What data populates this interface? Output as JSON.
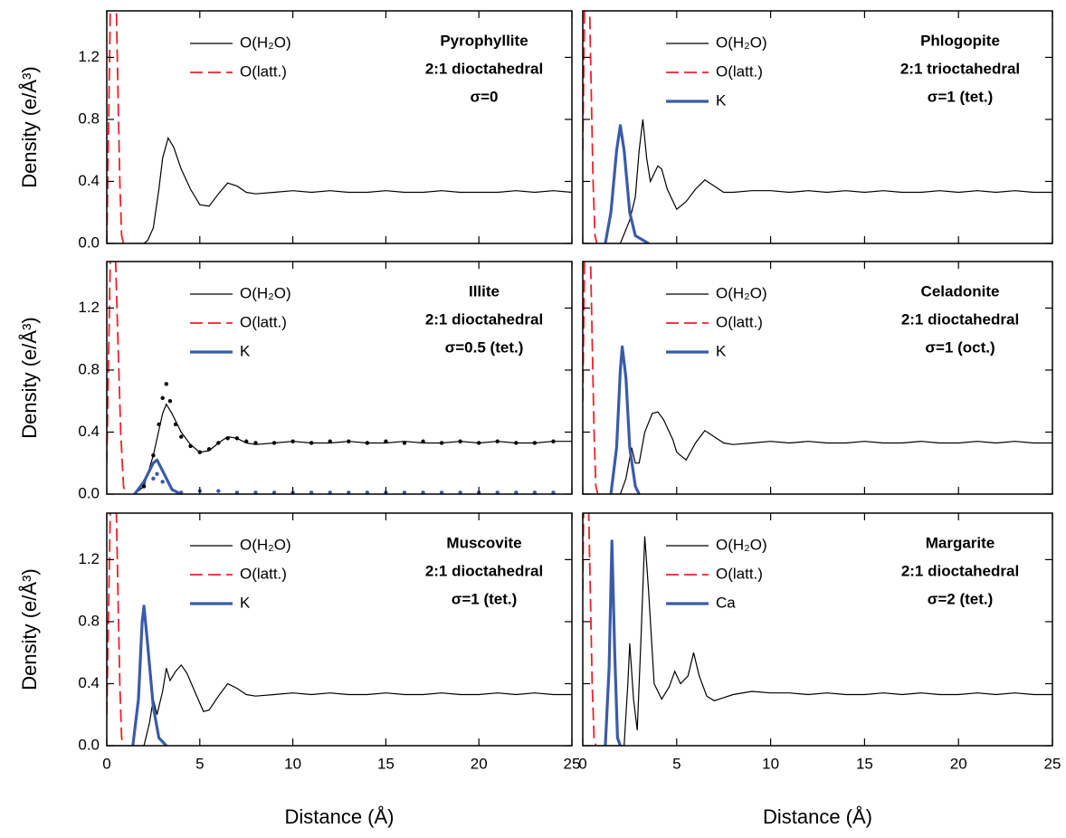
{
  "chart_data": [
    {
      "type": "line",
      "annotation": [
        "Pyrophyllite",
        "2:1 dioctahedral",
        "σ=0"
      ],
      "ylabel": "Density (e/Å³)",
      "xlim": [
        0,
        25
      ],
      "ylim": [
        0,
        1.5
      ],
      "xticks": [
        0,
        5,
        10,
        15,
        20,
        25
      ],
      "yticks": [
        {
          "value": 0,
          "label": "0.0"
        },
        {
          "value": 0.4,
          "label": "0.4"
        },
        {
          "value": 0.8,
          "label": "0.8"
        },
        {
          "value": 1.2,
          "label": "1.2"
        }
      ],
      "series": [
        {
          "name": "O(H₂O)",
          "color": "#000000",
          "style": "solid",
          "x": [
            0,
            1,
            2,
            2.2,
            2.5,
            2.8,
            3,
            3.3,
            3.6,
            4,
            4.5,
            5,
            5.5,
            6,
            6.5,
            7,
            7.5,
            8,
            9,
            10,
            11,
            12,
            13,
            14,
            15,
            16,
            17,
            18,
            19,
            20,
            21,
            22,
            23,
            24,
            25
          ],
          "values": [
            0,
            0,
            0,
            0.02,
            0.1,
            0.35,
            0.55,
            0.68,
            0.62,
            0.48,
            0.35,
            0.25,
            0.24,
            0.32,
            0.39,
            0.37,
            0.33,
            0.32,
            0.33,
            0.34,
            0.33,
            0.34,
            0.33,
            0.33,
            0.34,
            0.33,
            0.33,
            0.34,
            0.33,
            0.33,
            0.33,
            0.34,
            0.33,
            0.34,
            0.33
          ]
        },
        {
          "name": "O(latt.)",
          "color": "#e8232b",
          "style": "dashed",
          "x": [
            0,
            0.1,
            0.2,
            0.5,
            0.6,
            0.7,
            0.8,
            0.9
          ],
          "values": [
            0,
            0.8,
            1.6,
            1.6,
            1.0,
            0.4,
            0.05,
            0
          ]
        }
      ]
    },
    {
      "type": "line",
      "annotation": [
        "Phlogopite",
        "2:1 trioctahedral",
        "σ=1 (tet.)"
      ],
      "xlim": [
        0,
        25
      ],
      "ylim": [
        0,
        1.5
      ],
      "xticks": [
        0,
        5,
        10,
        15,
        20,
        25
      ],
      "yticks": [
        {
          "value": 0,
          "label": "0.0"
        },
        {
          "value": 0.4,
          "label": "0.4"
        },
        {
          "value": 0.8,
          "label": "0.8"
        },
        {
          "value": 1.2,
          "label": "1.2"
        }
      ],
      "series": [
        {
          "name": "O(H₂O)",
          "color": "#000000",
          "style": "solid",
          "x": [
            0,
            1,
            2,
            2.5,
            2.8,
            3,
            3.2,
            3.4,
            3.6,
            4,
            4.2,
            4.5,
            5,
            5.5,
            6,
            6.5,
            7,
            7.5,
            8,
            9,
            10,
            11,
            12,
            13,
            14,
            15,
            16,
            17,
            18,
            19,
            20,
            21,
            22,
            23,
            24,
            25
          ],
          "values": [
            0,
            0,
            0,
            0.15,
            0.3,
            0.6,
            0.8,
            0.55,
            0.4,
            0.5,
            0.48,
            0.35,
            0.22,
            0.27,
            0.35,
            0.41,
            0.37,
            0.33,
            0.33,
            0.34,
            0.34,
            0.33,
            0.34,
            0.33,
            0.34,
            0.33,
            0.34,
            0.33,
            0.33,
            0.34,
            0.33,
            0.34,
            0.33,
            0.34,
            0.33,
            0.33
          ]
        },
        {
          "name": "O(latt.)",
          "color": "#e8232b",
          "style": "dashed",
          "x": [
            0,
            0.1,
            0.35,
            0.45,
            0.55,
            0.65,
            0.75
          ],
          "values": [
            0.6,
            1.6,
            1.6,
            1.0,
            0.4,
            0.05,
            0
          ]
        },
        {
          "name": "K",
          "color": "#3a5bab",
          "style": "thick",
          "x": [
            1.2,
            1.5,
            1.8,
            2,
            2.2,
            2.5,
            2.8,
            3.5
          ],
          "values": [
            0,
            0.2,
            0.6,
            0.76,
            0.6,
            0.2,
            0.05,
            0
          ]
        }
      ]
    },
    {
      "type": "line",
      "annotation": [
        "Illite",
        "2:1 dioctahedral",
        "σ=0.5 (tet.)"
      ],
      "ylabel": "Density (e/Å³)",
      "xlim": [
        0,
        25
      ],
      "ylim": [
        0,
        1.5
      ],
      "xticks": [
        0,
        5,
        10,
        15,
        20,
        25
      ],
      "yticks": [
        {
          "value": 0,
          "label": "0.0"
        },
        {
          "value": 0.4,
          "label": "0.4"
        },
        {
          "value": 0.8,
          "label": "0.8"
        },
        {
          "value": 1.2,
          "label": "1.2"
        }
      ],
      "series": [
        {
          "name": "O(H₂O)",
          "color": "#000000",
          "style": "solid",
          "x": [
            1.5,
            2,
            2.5,
            3,
            3.2,
            3.5,
            4,
            4.5,
            5,
            5.5,
            6,
            6.5,
            7,
            7.5,
            8,
            9,
            10,
            11,
            12,
            13,
            14,
            15,
            16,
            17,
            18,
            19,
            20,
            21,
            22,
            23,
            24,
            25
          ],
          "values": [
            0,
            0.05,
            0.25,
            0.52,
            0.58,
            0.52,
            0.4,
            0.32,
            0.27,
            0.28,
            0.33,
            0.37,
            0.36,
            0.33,
            0.32,
            0.33,
            0.34,
            0.33,
            0.33,
            0.34,
            0.33,
            0.33,
            0.34,
            0.33,
            0.33,
            0.34,
            0.33,
            0.34,
            0.33,
            0.33,
            0.34,
            0.34
          ]
        },
        {
          "name": "O(latt.)",
          "color": "#e8232b",
          "style": "dashed",
          "x": [
            0,
            0.2,
            0.45,
            0.6,
            0.75,
            0.9,
            1.05
          ],
          "values": [
            0.2,
            1.6,
            1.6,
            1.0,
            0.4,
            0.05,
            0
          ]
        },
        {
          "name": "K",
          "color": "#3a5bab",
          "style": "thick",
          "x": [
            1.5,
            2,
            2.5,
            2.7,
            3,
            3.5,
            4
          ],
          "values": [
            0,
            0.08,
            0.2,
            0.22,
            0.15,
            0.03,
            0
          ]
        },
        {
          "color": "#000000",
          "style": "dots",
          "x": [
            2,
            2.5,
            2.8,
            3,
            3.2,
            3.4,
            3.7,
            4,
            4.5,
            5,
            5.5,
            6,
            6.5,
            7,
            7.5,
            8,
            9,
            10,
            11,
            12,
            13,
            14,
            15,
            16,
            17,
            18,
            19,
            20,
            21,
            22,
            23,
            24
          ],
          "values": [
            0.05,
            0.25,
            0.45,
            0.62,
            0.71,
            0.6,
            0.45,
            0.37,
            0.31,
            0.27,
            0.29,
            0.33,
            0.36,
            0.36,
            0.34,
            0.33,
            0.33,
            0.34,
            0.33,
            0.34,
            0.34,
            0.33,
            0.34,
            0.33,
            0.34,
            0.33,
            0.34,
            0.33,
            0.34,
            0.33,
            0.33,
            0.34
          ]
        },
        {
          "color": "#3a5bab",
          "style": "dots",
          "x": [
            2.5,
            2.7,
            3,
            4,
            5,
            6,
            7,
            8,
            9,
            10,
            11,
            12,
            13,
            14,
            15,
            16,
            17,
            18,
            19,
            20,
            21,
            22,
            23,
            24
          ],
          "values": [
            0.1,
            0.13,
            0.08,
            0.01,
            0.02,
            0.02,
            0.01,
            0.01,
            0.01,
            0.01,
            0.01,
            0.01,
            0.01,
            0.01,
            0.01,
            0.01,
            0.01,
            0.01,
            0.01,
            0.01,
            0.01,
            0.01,
            0.01,
            0.01
          ]
        }
      ]
    },
    {
      "type": "line",
      "annotation": [
        "Celadonite",
        "2:1 dioctahedral",
        "σ=1 (oct.)"
      ],
      "xlim": [
        0,
        25
      ],
      "ylim": [
        0,
        1.5
      ],
      "xticks": [
        0,
        5,
        10,
        15,
        20,
        25
      ],
      "yticks": [
        {
          "value": 0,
          "label": "0.0"
        },
        {
          "value": 0.4,
          "label": "0.4"
        },
        {
          "value": 0.8,
          "label": "0.8"
        },
        {
          "value": 1.2,
          "label": "1.2"
        }
      ],
      "series": [
        {
          "name": "O(H₂O)",
          "color": "#000000",
          "style": "solid",
          "x": [
            0,
            1,
            2,
            2.3,
            2.6,
            2.8,
            3,
            3.3,
            3.7,
            4,
            4.3,
            4.8,
            5,
            5.5,
            6,
            6.5,
            7,
            7.5,
            8,
            9,
            10,
            11,
            12,
            13,
            14,
            15,
            16,
            17,
            18,
            19,
            20,
            21,
            22,
            23,
            24,
            25
          ],
          "values": [
            0,
            0,
            0,
            0.1,
            0.3,
            0.2,
            0.2,
            0.4,
            0.52,
            0.53,
            0.48,
            0.35,
            0.27,
            0.22,
            0.33,
            0.41,
            0.37,
            0.33,
            0.32,
            0.33,
            0.34,
            0.33,
            0.34,
            0.33,
            0.33,
            0.34,
            0.33,
            0.33,
            0.34,
            0.33,
            0.33,
            0.34,
            0.33,
            0.34,
            0.33,
            0.33
          ]
        },
        {
          "name": "O(latt.)",
          "color": "#e8232b",
          "style": "dashed",
          "x": [
            0,
            0.1,
            0.4,
            0.5,
            0.6,
            0.7,
            0.8
          ],
          "values": [
            0.6,
            1.6,
            1.6,
            1.0,
            0.4,
            0.05,
            0
          ]
        },
        {
          "name": "K",
          "color": "#3a5bab",
          "style": "thick",
          "x": [
            1.5,
            1.8,
            2,
            2.1,
            2.3,
            2.5,
            2.8,
            3
          ],
          "values": [
            0,
            0.3,
            0.8,
            0.95,
            0.75,
            0.3,
            0.05,
            0
          ]
        }
      ]
    },
    {
      "type": "line",
      "annotation": [
        "Muscovite",
        "2:1 dioctahedral",
        "σ=1 (tet.)"
      ],
      "ylabel": "Density (e/Å³)",
      "xlabel": "Distance (Å)",
      "xlim": [
        0,
        25
      ],
      "ylim": [
        0,
        1.5
      ],
      "xticks": [
        0,
        5,
        10,
        15,
        20,
        25
      ],
      "yticks": [
        {
          "value": 0,
          "label": "0.0"
        },
        {
          "value": 0.4,
          "label": "0.4"
        },
        {
          "value": 0.8,
          "label": "0.8"
        },
        {
          "value": 1.2,
          "label": "1.2"
        }
      ],
      "series": [
        {
          "name": "O(H₂O)",
          "color": "#000000",
          "style": "solid",
          "x": [
            0,
            1,
            2,
            2.3,
            2.5,
            2.7,
            3,
            3.2,
            3.4,
            3.7,
            4,
            4.3,
            4.8,
            5.2,
            5.5,
            6,
            6.5,
            7,
            7.5,
            8,
            9,
            10,
            11,
            12,
            13,
            14,
            15,
            16,
            17,
            18,
            19,
            20,
            21,
            22,
            23,
            24,
            25
          ],
          "values": [
            0,
            0,
            0,
            0.15,
            0.3,
            0.2,
            0.35,
            0.5,
            0.42,
            0.48,
            0.52,
            0.47,
            0.33,
            0.22,
            0.23,
            0.32,
            0.4,
            0.37,
            0.33,
            0.32,
            0.33,
            0.34,
            0.33,
            0.34,
            0.33,
            0.33,
            0.34,
            0.33,
            0.33,
            0.34,
            0.33,
            0.33,
            0.34,
            0.33,
            0.34,
            0.33,
            0.33
          ]
        },
        {
          "name": "O(latt.)",
          "color": "#e8232b",
          "style": "dashed",
          "x": [
            0,
            0.2,
            0.5,
            0.6,
            0.7,
            0.8,
            0.9
          ],
          "values": [
            0.2,
            1.6,
            1.6,
            1.0,
            0.4,
            0.05,
            0
          ]
        },
        {
          "name": "K",
          "color": "#3a5bab",
          "style": "thick",
          "x": [
            1.4,
            1.7,
            1.9,
            2,
            2.2,
            2.5,
            2.8,
            3.2
          ],
          "values": [
            0,
            0.3,
            0.8,
            0.9,
            0.65,
            0.25,
            0.05,
            0
          ]
        }
      ]
    },
    {
      "type": "line",
      "annotation": [
        "Margarite",
        "2:1 dioctahedral",
        "σ=2 (tet.)"
      ],
      "xlabel": "Distance (Å)",
      "xlim": [
        0,
        25
      ],
      "ylim": [
        0,
        1.5
      ],
      "xticks": [
        0,
        5,
        10,
        15,
        20,
        25
      ],
      "yticks": [
        {
          "value": 0,
          "label": "0.0"
        },
        {
          "value": 0.4,
          "label": "0.4"
        },
        {
          "value": 0.8,
          "label": "0.8"
        },
        {
          "value": 1.2,
          "label": "1.2"
        }
      ],
      "series": [
        {
          "name": "O(H₂O)",
          "color": "#000000",
          "style": "solid",
          "x": [
            0,
            1,
            2.2,
            2.4,
            2.5,
            2.7,
            2.9,
            3.1,
            3.3,
            3.5,
            3.8,
            4.2,
            4.6,
            4.9,
            5.2,
            5.6,
            5.9,
            6.2,
            6.6,
            7,
            7.5,
            8,
            9,
            10,
            11,
            12,
            13,
            14,
            15,
            16,
            17,
            18,
            19,
            20,
            21,
            22,
            23,
            24,
            25
          ],
          "values": [
            0,
            0,
            0,
            0.4,
            0.66,
            0.3,
            0.1,
            0.7,
            1.35,
            1.0,
            0.4,
            0.3,
            0.38,
            0.48,
            0.4,
            0.45,
            0.6,
            0.45,
            0.32,
            0.29,
            0.31,
            0.33,
            0.35,
            0.34,
            0.34,
            0.33,
            0.34,
            0.33,
            0.33,
            0.34,
            0.33,
            0.34,
            0.33,
            0.33,
            0.34,
            0.33,
            0.34,
            0.33,
            0.33
          ]
        },
        {
          "name": "O(latt.)",
          "color": "#e8232b",
          "style": "dashed",
          "x": [
            0,
            0.05,
            0.3,
            0.4,
            0.5,
            0.6,
            0.7
          ],
          "values": [
            1.0,
            1.6,
            1.6,
            1.0,
            0.4,
            0.05,
            0
          ]
        },
        {
          "name": "Ca",
          "color": "#3a5bab",
          "style": "thick",
          "x": [
            1.2,
            1.4,
            1.55,
            1.7,
            1.85,
            2
          ],
          "values": [
            0,
            0.5,
            1.32,
            0.6,
            0.05,
            0
          ]
        }
      ]
    }
  ]
}
